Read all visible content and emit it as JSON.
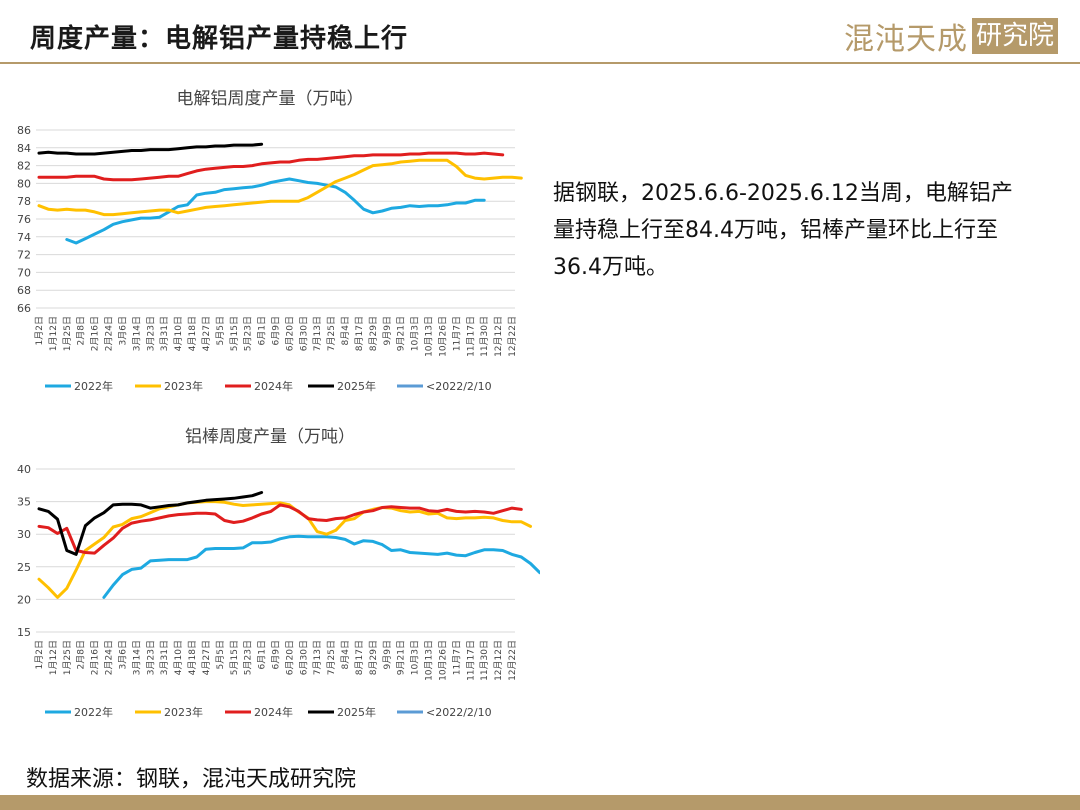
{
  "header": {
    "title": "周度产量：电解铝产量持稳上行"
  },
  "logo": {
    "text": "混沌天成",
    "box_text": "研究院"
  },
  "commentary": "据钢联，2025.6.6-2025.6.12当周，电解铝产量持稳上行至84.4万吨，铝棒产量环比上行至36.4万吨。",
  "source_note": "数据来源：钢联，混沌天成研究院",
  "colors": {
    "2022": "#1ea9e1",
    "2023": "#ffc000",
    "2024": "#e01e1e",
    "2025": "#000000",
    "old": "#5b9bd5",
    "brand": "#b59a6a",
    "grid": "#d9d9d9"
  },
  "chart_data": [
    {
      "type": "line",
      "title": "电解铝周度产量（万吨）",
      "ylim": [
        66,
        86
      ],
      "yticks": [
        66,
        68,
        70,
        72,
        74,
        76,
        78,
        80,
        82,
        84,
        86
      ],
      "grid": true,
      "legend_position": "bottom",
      "xlabels": [
        "1月2日",
        "1月12日",
        "1月25日",
        "2月8日",
        "2月16日",
        "2月24日",
        "3月6日",
        "3月14日",
        "3月23日",
        "3月31日",
        "4月10日",
        "4月18日",
        "4月27日",
        "5月5日",
        "5月15日",
        "5月23日",
        "6月1日",
        "6月9日",
        "6月20日",
        "6月30日",
        "7月13日",
        "7月25日",
        "8月4日",
        "8月17日",
        "8月29日",
        "9月9日",
        "9月21日",
        "10月3日",
        "10月13日",
        "10月26日",
        "11月7日",
        "11月17日",
        "11月30日",
        "12月12日",
        "12月22日"
      ],
      "series": [
        {
          "name": "2022年",
          "color_key": "2022",
          "start": 3,
          "values": [
            73.7,
            73.3,
            73.8,
            74.3,
            74.8,
            75.4,
            75.7,
            75.9,
            76.1,
            76.1,
            76.2,
            76.8,
            77.4,
            77.6,
            78.7,
            78.9,
            79.0,
            79.3,
            79.4,
            79.5,
            79.6,
            79.8,
            80.1,
            80.3,
            80.5,
            80.3,
            80.1,
            80.0,
            79.8,
            79.6,
            79.0,
            78.1,
            77.1,
            76.7,
            76.9,
            77.2,
            77.3,
            77.5,
            77.4,
            77.5,
            77.5,
            77.6,
            77.8,
            77.8,
            78.1,
            78.1
          ]
        },
        {
          "name": "2023年",
          "color_key": "2023",
          "start": 0,
          "values": [
            77.5,
            77.1,
            77.0,
            77.1,
            77.0,
            77.0,
            76.8,
            76.5,
            76.5,
            76.6,
            76.7,
            76.8,
            76.9,
            77.0,
            77.0,
            76.7,
            76.9,
            77.1,
            77.3,
            77.4,
            77.5,
            77.6,
            77.7,
            77.8,
            77.9,
            78.0,
            78.0,
            78.0,
            78.0,
            78.4,
            79.0,
            79.6,
            80.2,
            80.6,
            81.0,
            81.5,
            82.0,
            82.1,
            82.2,
            82.4,
            82.5,
            82.6,
            82.6,
            82.6,
            82.6,
            81.9,
            80.9,
            80.6,
            80.5,
            80.6,
            80.7,
            80.7,
            80.6
          ]
        },
        {
          "name": "2024年",
          "color_key": "2024",
          "start": 0,
          "values": [
            80.7,
            80.7,
            80.7,
            80.7,
            80.8,
            80.8,
            80.8,
            80.5,
            80.4,
            80.4,
            80.4,
            80.5,
            80.6,
            80.7,
            80.8,
            80.8,
            81.1,
            81.4,
            81.6,
            81.7,
            81.8,
            81.9,
            81.9,
            82.0,
            82.2,
            82.3,
            82.4,
            82.4,
            82.6,
            82.7,
            82.7,
            82.8,
            82.9,
            83.0,
            83.1,
            83.1,
            83.2,
            83.2,
            83.2,
            83.2,
            83.3,
            83.3,
            83.4,
            83.4,
            83.4,
            83.4,
            83.3,
            83.3,
            83.4,
            83.3,
            83.2
          ]
        },
        {
          "name": "2025年",
          "color_key": "2025",
          "start": 0,
          "values": [
            83.4,
            83.5,
            83.4,
            83.4,
            83.3,
            83.3,
            83.3,
            83.4,
            83.5,
            83.6,
            83.7,
            83.7,
            83.8,
            83.8,
            83.8,
            83.9,
            84.0,
            84.1,
            84.1,
            84.2,
            84.2,
            84.3,
            84.3,
            84.3,
            84.4
          ]
        },
        {
          "name": "<2022/2/10",
          "color_key": "old",
          "start": 0,
          "values": []
        }
      ]
    },
    {
      "type": "line",
      "title": "铝棒周度产量（万吨）",
      "ylim": [
        15,
        40
      ],
      "yticks": [
        15,
        20,
        25,
        30,
        35,
        40
      ],
      "grid": true,
      "legend_position": "bottom",
      "xlabels": [
        "1月2日",
        "1月12日",
        "1月25日",
        "2月8日",
        "2月16日",
        "2月24日",
        "3月6日",
        "3月14日",
        "3月23日",
        "3月31日",
        "4月10日",
        "4月18日",
        "4月27日",
        "5月5日",
        "5月15日",
        "5月23日",
        "6月1日",
        "6月9日",
        "6月20日",
        "6月30日",
        "7月13日",
        "7月25日",
        "8月4日",
        "8月17日",
        "8月29日",
        "9月9日",
        "9月21日",
        "10月3日",
        "10月13日",
        "10月26日",
        "11月7日",
        "11月17日",
        "11月30日",
        "12月12日",
        "12月22日"
      ],
      "series": [
        {
          "name": "2022年",
          "color_key": "2022",
          "start": 7,
          "values": [
            20.3,
            22.2,
            23.8,
            24.6,
            24.8,
            25.9,
            26.0,
            26.1,
            26.1,
            26.1,
            26.5,
            27.7,
            27.8,
            27.8,
            27.8,
            27.9,
            28.7,
            28.7,
            28.8,
            29.3,
            29.6,
            29.7,
            29.6,
            29.6,
            29.6,
            29.5,
            29.2,
            28.5,
            29.0,
            28.9,
            28.4,
            27.5,
            27.6,
            27.2,
            27.1,
            27.0,
            26.9,
            27.1,
            26.8,
            26.7,
            27.2,
            27.6,
            27.6,
            27.5,
            26.9,
            26.5,
            25.5,
            24.1
          ]
        },
        {
          "name": "2023年",
          "color_key": "2023",
          "start": 0,
          "values": [
            23.1,
            21.8,
            20.3,
            21.7,
            24.5,
            27.5,
            28.5,
            29.5,
            31.1,
            31.5,
            32.4,
            32.7,
            33.3,
            33.9,
            34.2,
            34.5,
            34.8,
            34.9,
            35.0,
            35.0,
            34.9,
            34.6,
            34.4,
            34.5,
            34.6,
            34.7,
            34.8,
            34.5,
            33.4,
            32.5,
            30.4,
            30.0,
            30.6,
            32.1,
            32.4,
            33.4,
            33.8,
            34.1,
            34.0,
            33.6,
            33.4,
            33.5,
            33.1,
            33.2,
            32.5,
            32.4,
            32.5,
            32.5,
            32.6,
            32.5,
            32.1,
            31.9,
            31.9,
            31.2
          ]
        },
        {
          "name": "2024年",
          "color_key": "2024",
          "start": 0,
          "values": [
            31.2,
            31.0,
            30.1,
            30.9,
            27.5,
            27.2,
            27.1,
            28.3,
            29.4,
            30.9,
            31.7,
            32.0,
            32.2,
            32.5,
            32.8,
            33.0,
            33.1,
            33.2,
            33.2,
            33.1,
            32.1,
            31.8,
            32.0,
            32.5,
            33.1,
            33.5,
            34.5,
            34.2,
            33.5,
            32.4,
            32.2,
            32.1,
            32.4,
            32.5,
            33.0,
            33.4,
            33.6,
            34.1,
            34.2,
            34.1,
            34.0,
            34.0,
            33.6,
            33.5,
            33.8,
            33.5,
            33.4,
            33.5,
            33.4,
            33.2,
            33.6,
            34.0,
            33.8
          ]
        },
        {
          "name": "2025年",
          "color_key": "2025",
          "start": 0,
          "values": [
            33.9,
            33.5,
            32.3,
            27.5,
            26.9,
            31.3,
            32.5,
            33.3,
            34.5,
            34.6,
            34.6,
            34.5,
            34.0,
            34.2,
            34.4,
            34.5,
            34.8,
            35.0,
            35.2,
            35.3,
            35.4,
            35.5,
            35.7,
            35.9,
            36.4
          ]
        },
        {
          "name": "<2022/2/10",
          "color_key": "old",
          "start": 0,
          "values": []
        }
      ]
    }
  ]
}
